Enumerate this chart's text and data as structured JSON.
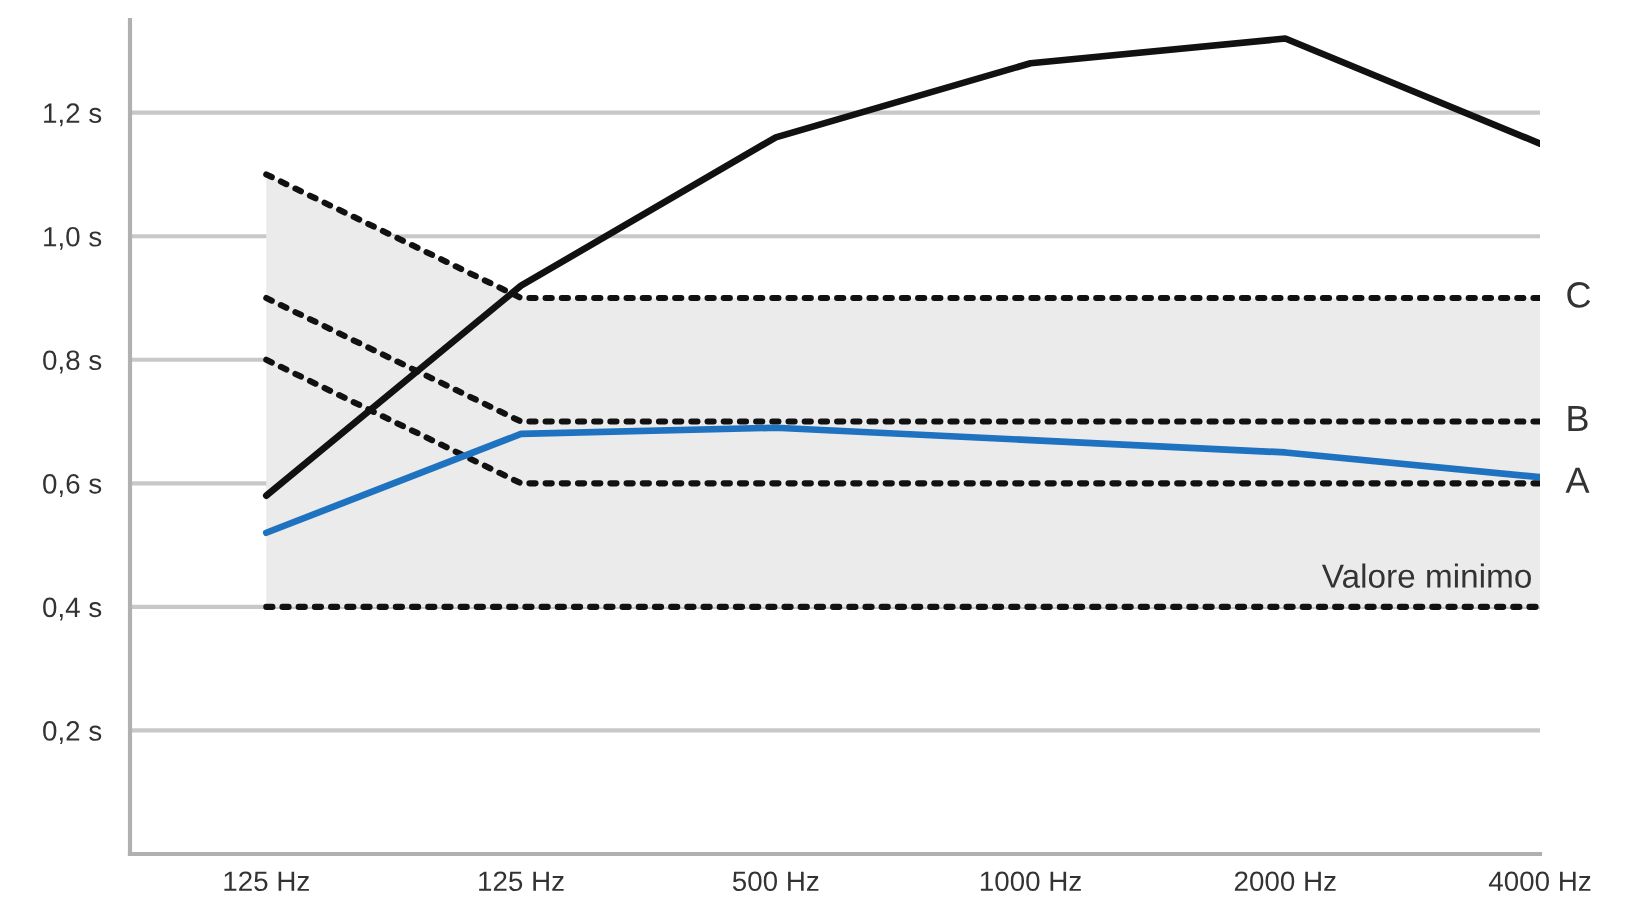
{
  "chart_data": {
    "type": "line",
    "categories": [
      "125 Hz",
      "125 Hz",
      "500 Hz",
      "1000 Hz",
      "2000 Hz",
      "4000 Hz"
    ],
    "series": [
      {
        "name": "C",
        "color": "#111111",
        "line_style": "dotted",
        "values": [
          1.1,
          0.9,
          0.9,
          0.9,
          0.9,
          0.9
        ],
        "lower": [
          0.4,
          0.4,
          0.4,
          0.4,
          0.4,
          0.4
        ],
        "upper": [
          1.1,
          0.9,
          0.9,
          0.9,
          0.9,
          0.9
        ]
      },
      {
        "name": "B",
        "color": "#111111",
        "line_style": "dotted",
        "values": [
          0.9,
          0.7,
          0.7,
          0.7,
          0.7,
          0.7
        ]
      },
      {
        "name": "A",
        "color": "#111111",
        "line_style": "dotted",
        "values": [
          0.8,
          0.6,
          0.6,
          0.6,
          0.6,
          0.6
        ]
      },
      {
        "name": "Valore minimo",
        "color": "#111111",
        "line_style": "dotted",
        "values": [
          0.4,
          0.4,
          0.4,
          0.4,
          0.4,
          0.4
        ]
      },
      {
        "color": "#111111",
        "line_style": "solid",
        "values": [
          0.58,
          0.92,
          1.16,
          1.28,
          1.32,
          1.15
        ]
      },
      {
        "color": "#1f72c0",
        "line_style": "solid",
        "values": [
          0.52,
          0.68,
          0.69,
          0.67,
          0.65,
          0.61
        ]
      }
    ],
    "ylim": [
      0,
      1.35
    ],
    "yticks": [
      {
        "value": 0.2,
        "label": "0,2 s"
      },
      {
        "value": 0.4,
        "label": "0,4 s"
      },
      {
        "value": 0.6,
        "label": "0,6 s"
      },
      {
        "value": 0.8,
        "label": "0,8 s"
      },
      {
        "value": 1.0,
        "label": "1,0 s"
      },
      {
        "value": 1.2,
        "label": "1,2 s"
      }
    ],
    "grid": "y",
    "marker": "none"
  }
}
